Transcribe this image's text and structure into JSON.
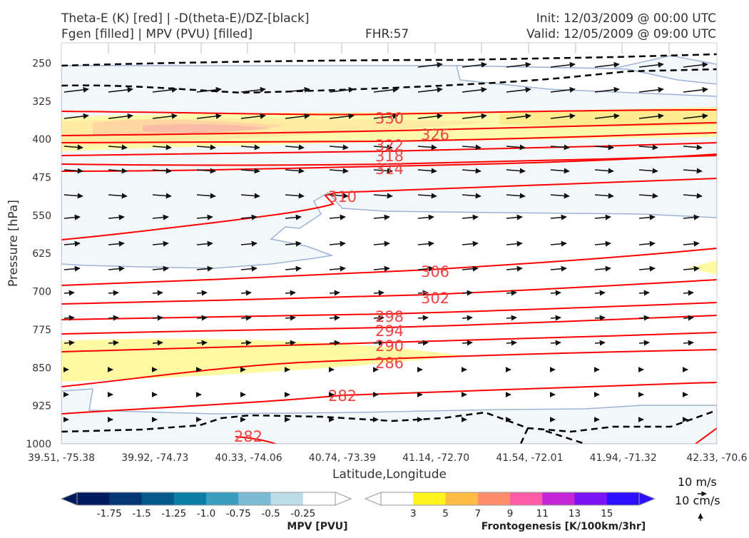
{
  "header": {
    "title_line1": "Theta-E (K) [red] | -D(theta-E)/DZ-[black]",
    "title_line2": "Fgen [filled] | MPV (PVU) [filled]",
    "fhr": "FHR:57",
    "init": "Init: 12/03/2009 @ 00:00 UTC",
    "valid": "Valid: 12/05/2009 @ 09:00 UTC"
  },
  "chart_data": {
    "type": "cross-section",
    "ylabel": "Pressure [hPa]",
    "xlabel": "Latitude,Longitude",
    "yaxis_inverted": true,
    "ylim": [
      1000,
      210
    ],
    "yticks": [
      "250",
      "325",
      "400",
      "475",
      "550",
      "625",
      "700",
      "775",
      "850",
      "925",
      "1000"
    ],
    "ytick_values": [
      250,
      325,
      400,
      475,
      550,
      625,
      700,
      775,
      850,
      925,
      1000
    ],
    "xticks": [
      "39.51, -75.38",
      "39.92, -74.73",
      "40.33, -74.06",
      "40.74, -73.39",
      "41.14, -72.70",
      "41.54, -72.01",
      "41.94, -71.32",
      "42.33, -70.6"
    ],
    "theta_e_contours": {
      "color": "#ff0000",
      "labels": [
        "330",
        "326",
        "322",
        "318",
        "314",
        "310",
        "306",
        "302",
        "298",
        "294",
        "290",
        "286",
        "282",
        "282"
      ]
    },
    "wind_reference": {
      "horizontal": "10 m/s",
      "vertical": "10 cm/s"
    },
    "colorbars": [
      {
        "title": "MPV [PVU]",
        "ticks": [
          "-1.75",
          "-1.5",
          "-1.25",
          "-1.0",
          "-0.75",
          "-0.5",
          "-0.25"
        ],
        "colors": [
          "#021a5e",
          "#043675",
          "#055a8c",
          "#0a7fa6",
          "#3a9ec1",
          "#7bbcd4",
          "#bddde6",
          "#ffffff"
        ]
      },
      {
        "title": "Frontogenesis [K/100km/3hr]",
        "ticks": [
          "3",
          "5",
          "7",
          "9",
          "11",
          "13",
          "15"
        ],
        "colors": [
          "#ffffff",
          "#fff51e",
          "#ffbd45",
          "#ff8c6a",
          "#ff5aa5",
          "#c427d6",
          "#7a14f4",
          "#2b10ff"
        ]
      }
    ]
  }
}
